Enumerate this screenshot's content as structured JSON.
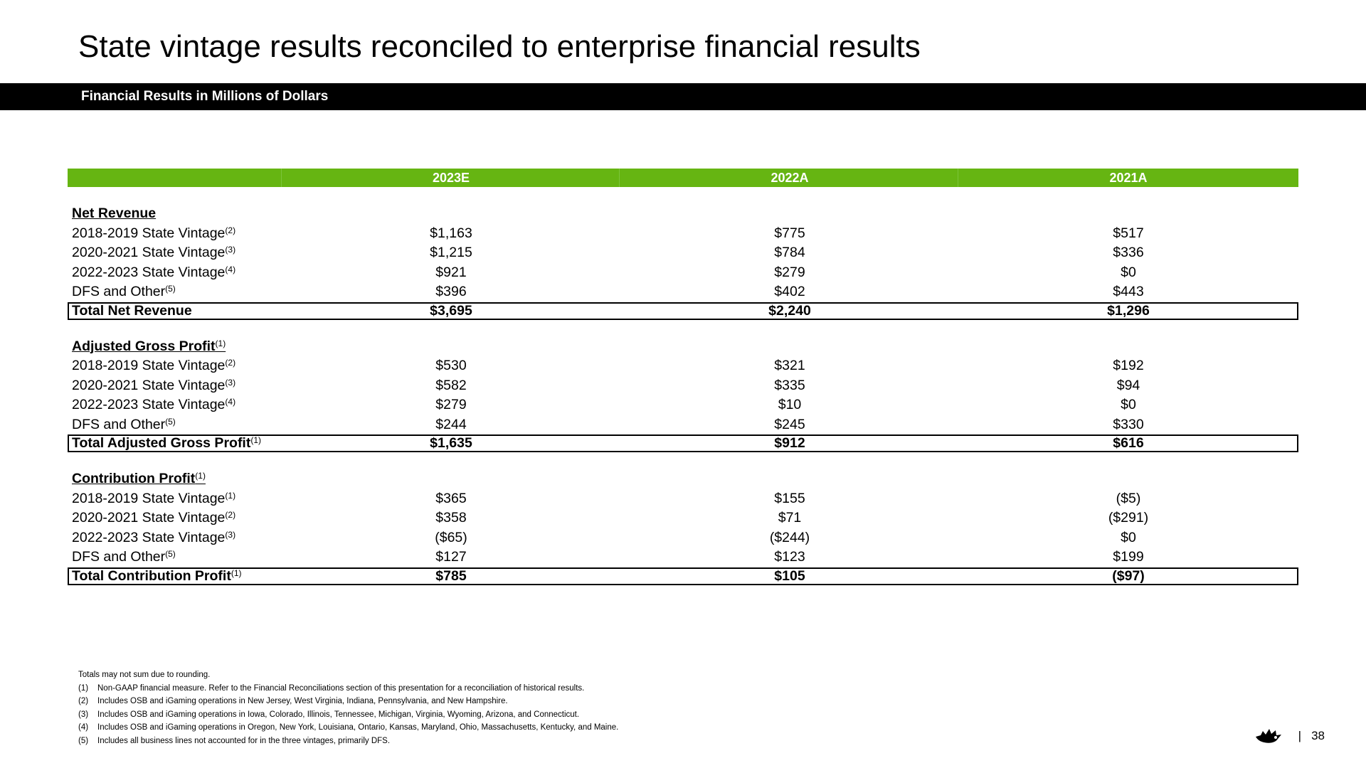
{
  "title": "State vintage results reconciled to enterprise financial results",
  "subtitle": "Financial Results in Millions of Dollars",
  "columns": [
    "2023E",
    "2022A",
    "2021A"
  ],
  "sections": [
    {
      "heading": "Net Revenue",
      "heading_sup": "",
      "rows": [
        {
          "label": "2018-2019 State Vintage",
          "sup": "(2)",
          "values": [
            "$1,163",
            "$775",
            "$517"
          ]
        },
        {
          "label": "2020-2021 State Vintage",
          "sup": "(3)",
          "values": [
            "$1,215",
            "$784",
            "$336"
          ]
        },
        {
          "label": "2022-2023 State Vintage",
          "sup": "(4)",
          "values": [
            "$921",
            "$279",
            "$0"
          ]
        },
        {
          "label": "DFS and Other",
          "sup": "(5)",
          "values": [
            "$396",
            "$402",
            "$443"
          ]
        }
      ],
      "total": {
        "label": "Total Net Revenue",
        "sup": "",
        "values": [
          "$3,695",
          "$2,240",
          "$1,296"
        ]
      }
    },
    {
      "heading": "Adjusted Gross Profit",
      "heading_sup": "(1)",
      "rows": [
        {
          "label": "2018-2019 State Vintage",
          "sup": "(2)",
          "values": [
            "$530",
            "$321",
            "$192"
          ]
        },
        {
          "label": "2020-2021 State Vintage",
          "sup": "(3)",
          "values": [
            "$582",
            "$335",
            "$94"
          ]
        },
        {
          "label": "2022-2023 State Vintage",
          "sup": "(4)",
          "values": [
            "$279",
            "$10",
            "$0"
          ]
        },
        {
          "label": "DFS and Other",
          "sup": "(5)",
          "values": [
            "$244",
            "$245",
            "$330"
          ]
        }
      ],
      "total": {
        "label": "Total Adjusted Gross Profit",
        "sup": "(1)",
        "values": [
          "$1,635",
          "$912",
          "$616"
        ]
      }
    },
    {
      "heading": "Contribution Profit",
      "heading_sup": "(1)",
      "rows": [
        {
          "label": "2018-2019 State Vintage",
          "sup": "(1)",
          "values": [
            "$365",
            "$155",
            "($5)"
          ]
        },
        {
          "label": "2020-2021 State Vintage",
          "sup": "(2)",
          "values": [
            "$358",
            "$71",
            "($291)"
          ]
        },
        {
          "label": "2022-2023 State Vintage",
          "sup": "(3)",
          "values": [
            "($65)",
            "($244)",
            "$0"
          ]
        },
        {
          "label": "DFS and Other",
          "sup": "(5)",
          "values": [
            "$127",
            "$123",
            "$199"
          ]
        }
      ],
      "total": {
        "label": "Total Contribution Profit",
        "sup": "(1)",
        "values": [
          "$785",
          "$105",
          "($97)"
        ]
      }
    }
  ],
  "notes": {
    "intro": "Totals may not sum due to rounding.",
    "items": [
      {
        "num": "(1)",
        "text": "Non-GAAP financial measure. Refer to the Financial Reconciliations section of this presentation for a reconciliation of historical results."
      },
      {
        "num": "(2)",
        "text": "Includes OSB and iGaming operations in New Jersey, West Virginia, Indiana, Pennsylvania, and New Hampshire."
      },
      {
        "num": "(3)",
        "text": "Includes OSB and iGaming operations in Iowa, Colorado, Illinois, Tennessee, Michigan, Virginia, Wyoming, Arizona, and Connecticut."
      },
      {
        "num": "(4)",
        "text": "Includes OSB and iGaming operations in Oregon, New York, Louisiana, Ontario, Kansas, Maryland, Ohio, Massachusetts, Kentucky, and Maine."
      },
      {
        "num": "(5)",
        "text": "Includes all business lines not accounted for in the three vintages, primarily DFS."
      }
    ]
  },
  "footer": {
    "separator": "|",
    "page_number": "38"
  },
  "icons": {
    "logo": "crown-logo-icon"
  },
  "colors": {
    "header_green": "#66b512",
    "bar_black": "#000000"
  }
}
